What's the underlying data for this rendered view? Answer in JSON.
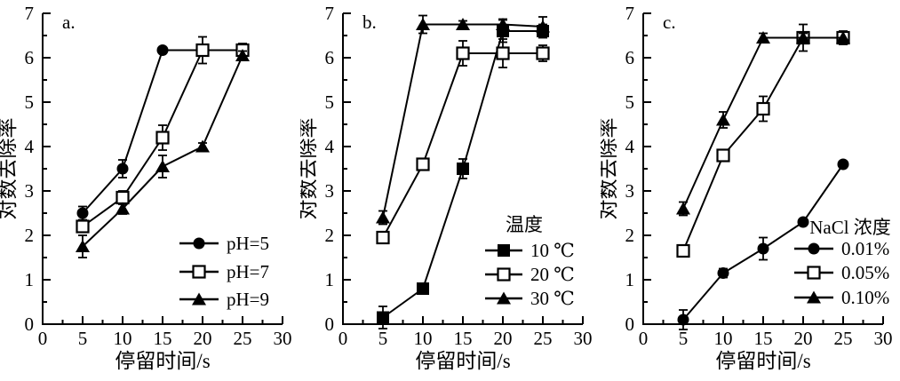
{
  "page": {
    "background": "#ffffff",
    "line_color": "#000000"
  },
  "chart_data": [
    {
      "type": "line",
      "panel_label": "a.",
      "xlabel": "停留时间/s",
      "ylabel": "对数去除率",
      "xlim": [
        0,
        30
      ],
      "ylim": [
        0,
        7
      ],
      "xticks": [
        0,
        5,
        10,
        15,
        20,
        25,
        30
      ],
      "yticks": [
        0,
        1,
        2,
        3,
        4,
        5,
        6,
        7
      ],
      "x_minor_step": 2.5,
      "y_minor_step": 0.5,
      "grid": false,
      "legend": {
        "title": "",
        "position": "lower-right"
      },
      "x": [
        5,
        10,
        15,
        20,
        25
      ],
      "series": [
        {
          "name": "pH=5",
          "marker": "circle-filled",
          "values": [
            2.5,
            3.5,
            6.17,
            6.17,
            6.17
          ],
          "errors": [
            0.15,
            0.2,
            0,
            0,
            0
          ]
        },
        {
          "name": "pH=7",
          "marker": "square-open",
          "values": [
            2.2,
            2.85,
            4.2,
            6.17,
            6.17
          ],
          "errors": [
            0.12,
            0.15,
            0.28,
            0.3,
            0.15
          ]
        },
        {
          "name": "pH=9",
          "marker": "triangle-filled",
          "values": [
            1.75,
            2.6,
            3.55,
            4.0,
            6.05
          ],
          "errors": [
            0.25,
            0.12,
            0.25,
            0.08,
            0.1
          ]
        }
      ]
    },
    {
      "type": "line",
      "panel_label": "b.",
      "xlabel": "停留时间/s",
      "ylabel": "对数去除率",
      "xlim": [
        0,
        30
      ],
      "ylim": [
        0,
        7
      ],
      "xticks": [
        0,
        5,
        10,
        15,
        20,
        25,
        30
      ],
      "yticks": [
        0,
        1,
        2,
        3,
        4,
        5,
        6,
        7
      ],
      "x_minor_step": 2.5,
      "y_minor_step": 0.5,
      "grid": false,
      "legend": {
        "title": "温度",
        "position": "lower-right"
      },
      "x": [
        5,
        10,
        15,
        20,
        25
      ],
      "series": [
        {
          "name": "10 ℃",
          "marker": "square-filled",
          "values": [
            0.15,
            0.8,
            3.5,
            6.6,
            6.6
          ],
          "errors": [
            0.25,
            0.1,
            0.22,
            0.25,
            0.15
          ]
        },
        {
          "name": "20 ℃",
          "marker": "square-open",
          "values": [
            1.95,
            3.6,
            6.1,
            6.1,
            6.1
          ],
          "errors": [
            0.12,
            0.12,
            0.28,
            0.32,
            0.18
          ]
        },
        {
          "name": "30 ℃",
          "marker": "triangle-filled",
          "values": [
            2.4,
            6.75,
            6.75,
            6.75,
            6.7
          ],
          "errors": [
            0.15,
            0.2,
            0.08,
            0.12,
            0.22
          ]
        }
      ]
    },
    {
      "type": "line",
      "panel_label": "c.",
      "xlabel": "停留时间/s",
      "ylabel": "对数去除率",
      "xlim": [
        0,
        30
      ],
      "ylim": [
        0,
        7
      ],
      "xticks": [
        0,
        5,
        10,
        15,
        20,
        25,
        30
      ],
      "yticks": [
        0,
        1,
        2,
        3,
        4,
        5,
        6,
        7
      ],
      "x_minor_step": 2.5,
      "y_minor_step": 0.5,
      "grid": false,
      "legend": {
        "title": "NaCl 浓度",
        "position": "lower-right"
      },
      "x": [
        5,
        10,
        15,
        20,
        25
      ],
      "series": [
        {
          "name": "0.01%",
          "marker": "circle-filled",
          "values": [
            0.1,
            1.15,
            1.7,
            2.3,
            3.6
          ],
          "errors": [
            0.22,
            0.1,
            0.25,
            0,
            0
          ]
        },
        {
          "name": "0.05%",
          "marker": "square-open",
          "values": [
            1.65,
            3.8,
            4.85,
            6.45,
            6.45
          ],
          "errors": [
            0.1,
            0.12,
            0.28,
            0.3,
            0.12
          ]
        },
        {
          "name": "0.10%",
          "marker": "triangle-filled",
          "values": [
            2.6,
            4.6,
            6.45,
            6.45,
            6.45
          ],
          "errors": [
            0.15,
            0.18,
            0.1,
            0.1,
            0.15
          ]
        }
      ]
    }
  ]
}
